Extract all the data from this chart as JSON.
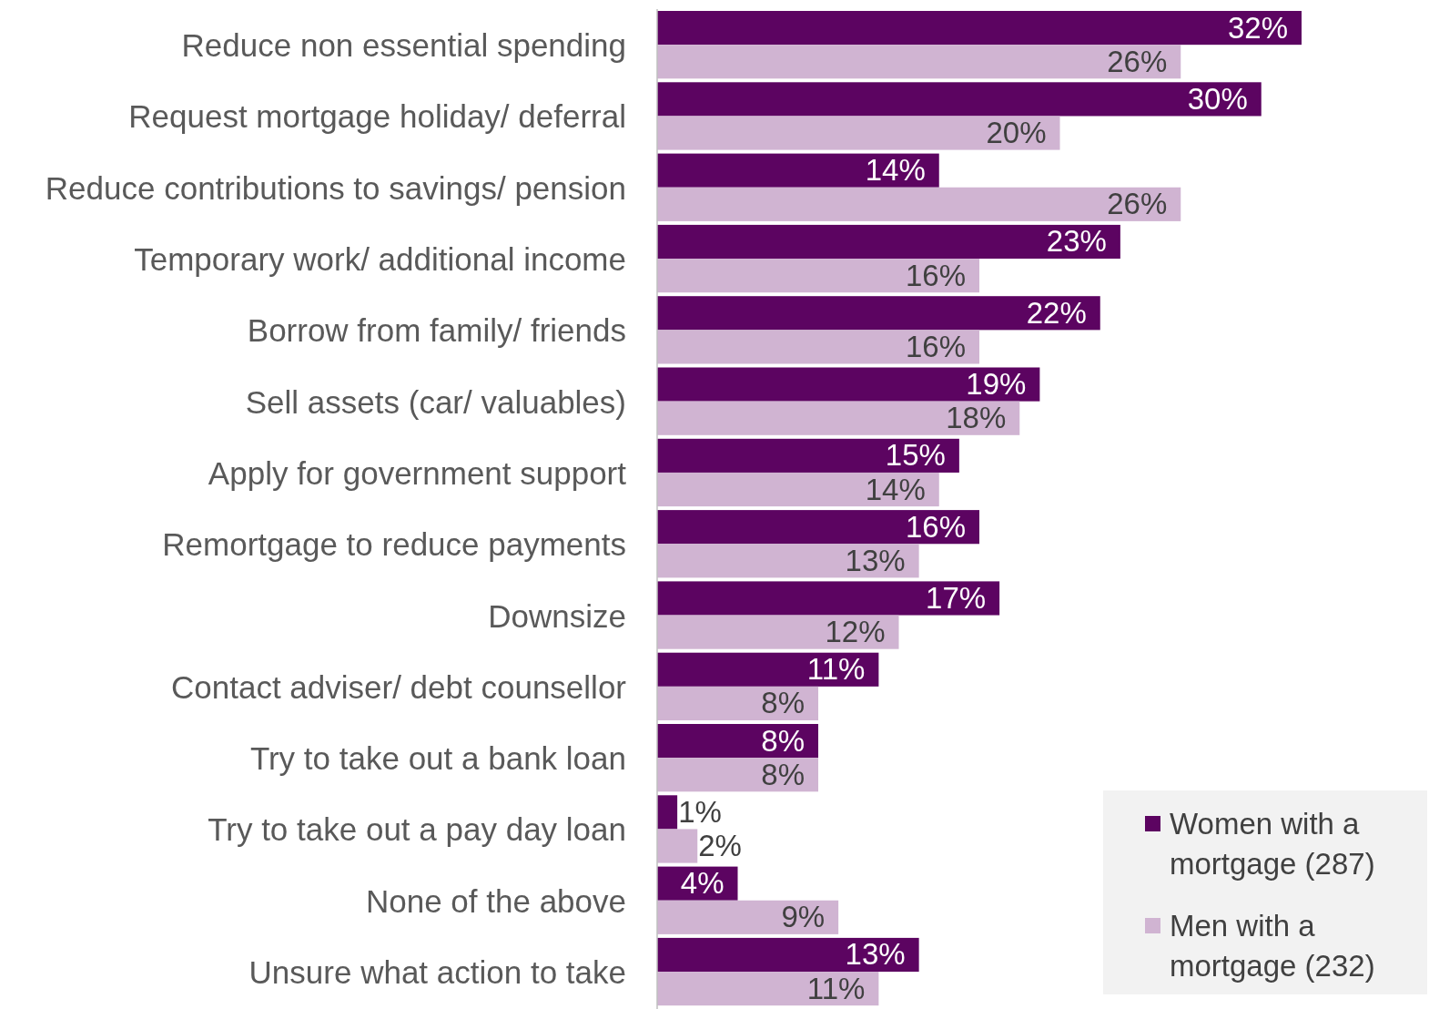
{
  "chart_data": {
    "type": "bar",
    "orientation": "horizontal",
    "legend": "bottom right",
    "categories": [
      "Reduce non essential spending",
      "Request mortgage holiday/ deferral",
      "Reduce contributions to savings/ pension",
      "Temporary work/ additional income",
      "Borrow from family/ friends",
      "Sell assets (car/ valuables)",
      "Apply for government support",
      "Remortgage to reduce payments",
      "Downsize",
      "Contact adviser/ debt counsellor",
      "Try to take out a bank loan",
      "Try to take out a pay day loan",
      "None of the above",
      "Unsure what action to take"
    ],
    "series": [
      {
        "name": "Women with a mortgage (287)",
        "color": "#5c0461",
        "values": [
          32,
          30,
          14,
          23,
          22,
          19,
          15,
          16,
          17,
          11,
          8,
          1,
          4,
          13
        ],
        "value_labels": [
          "32%",
          "30%",
          "14%",
          "23%",
          "22%",
          "19%",
          "15%",
          "16%",
          "17%",
          "11%",
          "8%",
          "1%",
          "4%",
          "13%"
        ]
      },
      {
        "name": "Men with a mortgage (232)",
        "color": "#d0b4d2",
        "values": [
          26,
          20,
          26,
          16,
          16,
          18,
          14,
          13,
          12,
          8,
          8,
          2,
          9,
          11
        ],
        "value_labels": [
          "26%",
          "20%",
          "26%",
          "16%",
          "16%",
          "18%",
          "14%",
          "13%",
          "12%",
          "8%",
          "8%",
          "2%",
          "9%",
          "11%"
        ]
      }
    ]
  }
}
